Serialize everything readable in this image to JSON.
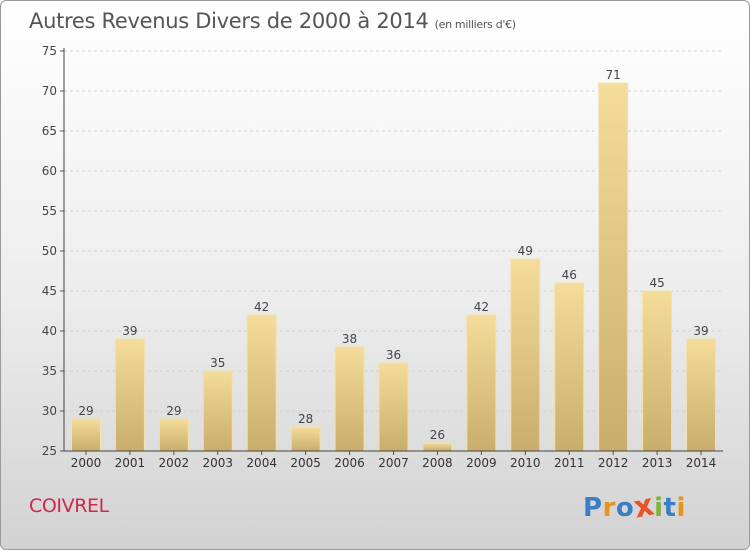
{
  "chart_data": {
    "type": "bar",
    "title": "Autres Revenus Divers de 2000 à 2014",
    "subtitle": "(en milliers d'€)",
    "categories": [
      "2000",
      "2001",
      "2002",
      "2003",
      "2004",
      "2005",
      "2006",
      "2007",
      "2008",
      "2009",
      "2010",
      "2011",
      "2012",
      "2013",
      "2014"
    ],
    "values": [
      29,
      39,
      29,
      35,
      42,
      28,
      38,
      36,
      26,
      42,
      49,
      46,
      71,
      45,
      39
    ],
    "ylim": [
      25,
      75
    ],
    "yticks": [
      25,
      30,
      35,
      40,
      45,
      50,
      55,
      60,
      65,
      70,
      75
    ],
    "grid": true,
    "bar_color_light": "#f5dc9a",
    "bar_color_dark": "#c9ad6c",
    "bar_edge": "#f0e2b0"
  },
  "footer": {
    "commune": "COIVREL",
    "logo_letters": [
      "P",
      "r",
      "o",
      "x",
      "i",
      "t",
      "i"
    ],
    "logo_colors": [
      "#3a7fc4",
      "#e8931a",
      "#3a7fc4",
      "#e8542a",
      "#7fb23a",
      "#3a7fc4",
      "#e8931a"
    ]
  }
}
